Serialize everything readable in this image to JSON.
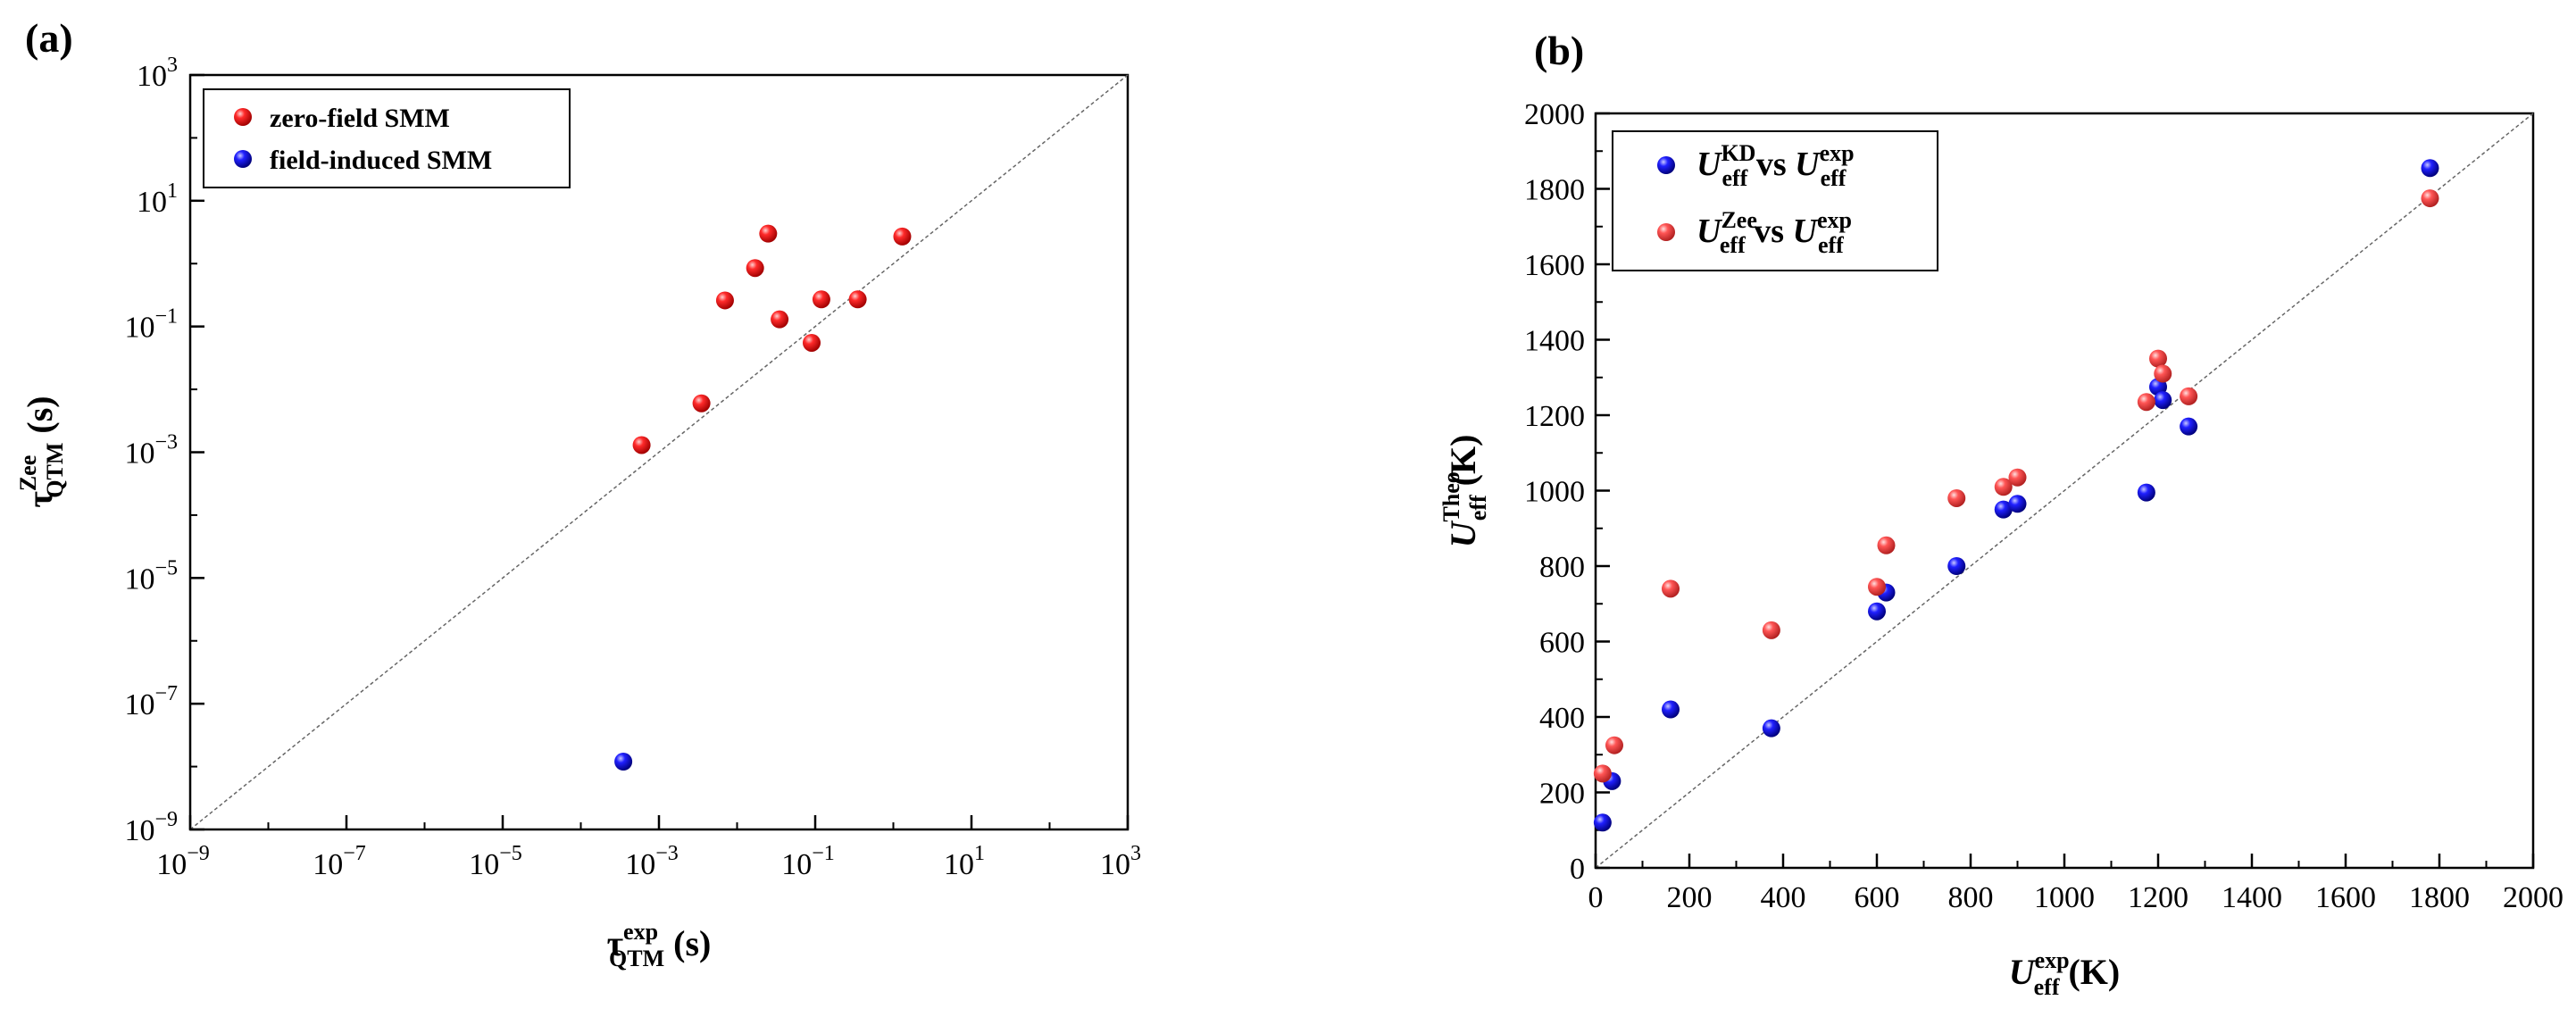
{
  "chart_data": [
    {
      "panel": "(a)",
      "type": "scatter",
      "xscale": "log",
      "yscale": "log",
      "xlim": [
        1e-09,
        1000
      ],
      "ylim": [
        1e-09,
        1000
      ],
      "xticks": [
        1e-09,
        1e-07,
        1e-05,
        0.001,
        0.1,
        10,
        1000
      ],
      "yticks": [
        1e-09,
        1e-07,
        1e-05,
        0.001,
        0.1,
        10,
        1000
      ],
      "tick_mantissa": "10",
      "tick_exponents": [
        "−9",
        "−7",
        "−5",
        "−3",
        "−1",
        "1",
        "3"
      ],
      "xlabel": {
        "main": "τ",
        "sup": "exp",
        "sub": "QTM",
        "unit": " (s)"
      },
      "ylabel": {
        "main": "τ",
        "sup": "Zee",
        "sub": "QTM",
        "unit": " (s)"
      },
      "reference_line": "y = x",
      "legend_position": "top-left",
      "series": [
        {
          "name": "zero-field SMM",
          "color": "#ee1111",
          "points": [
            [
              0.0006,
              0.0013
            ],
            [
              0.0035,
              0.006
            ],
            [
              0.007,
              0.26
            ],
            [
              0.017,
              0.85
            ],
            [
              0.025,
              3.0
            ],
            [
              0.035,
              0.13
            ],
            [
              0.09,
              0.055
            ],
            [
              0.12,
              0.27
            ],
            [
              0.35,
              0.27
            ],
            [
              1.3,
              2.7
            ]
          ]
        },
        {
          "name": "field-induced SMM",
          "color": "#1111ee",
          "points": [
            [
              0.00035,
              1.2e-08
            ]
          ]
        }
      ]
    },
    {
      "panel": "(b)",
      "type": "scatter",
      "xlim": [
        0,
        2000
      ],
      "ylim": [
        0,
        2000
      ],
      "xticks": [
        0,
        200,
        400,
        600,
        800,
        1000,
        1200,
        1400,
        1600,
        1800,
        2000
      ],
      "yticks": [
        0,
        200,
        400,
        600,
        800,
        1000,
        1200,
        1400,
        1600,
        1800,
        2000
      ],
      "xlabel": {
        "main": "U",
        "sup": "exp",
        "sub": "eff",
        "unit": " (K)"
      },
      "ylabel": {
        "main": "U",
        "sup": "Theo",
        "sub": "eff",
        "unit": " (K)"
      },
      "reference_line": "y = x",
      "legend_position": "top-left",
      "series": [
        {
          "name": "U_eff^KD vs U_eff^exp",
          "legend": {
            "a_main": "U",
            "a_sup": "KD",
            "a_sub": "eff",
            "mid": " vs ",
            "b_main": "U",
            "b_sup": "exp",
            "b_sub": "eff"
          },
          "color": "#1111ee",
          "points": [
            [
              15,
              120
            ],
            [
              35,
              230
            ],
            [
              160,
              420
            ],
            [
              375,
              370
            ],
            [
              600,
              680
            ],
            [
              620,
              730
            ],
            [
              770,
              800
            ],
            [
              870,
              950
            ],
            [
              900,
              965
            ],
            [
              1175,
              995
            ],
            [
              1200,
              1275
            ],
            [
              1210,
              1240
            ],
            [
              1265,
              1170
            ],
            [
              1780,
              1855
            ]
          ]
        },
        {
          "name": "U_eff^Zee vs U_eff^exp",
          "legend": {
            "a_main": "U",
            "a_sup": "Zee",
            "a_sub": "eff",
            "mid": " vs ",
            "b_main": "U",
            "b_sup": "exp",
            "b_sub": "eff"
          },
          "color": "#ee4444",
          "points": [
            [
              15,
              250
            ],
            [
              40,
              325
            ],
            [
              160,
              740
            ],
            [
              375,
              630
            ],
            [
              600,
              745
            ],
            [
              620,
              855
            ],
            [
              770,
              980
            ],
            [
              870,
              1010
            ],
            [
              900,
              1035
            ],
            [
              1175,
              1235
            ],
            [
              1200,
              1350
            ],
            [
              1210,
              1310
            ],
            [
              1265,
              1250
            ],
            [
              1780,
              1775
            ]
          ]
        }
      ]
    }
  ]
}
